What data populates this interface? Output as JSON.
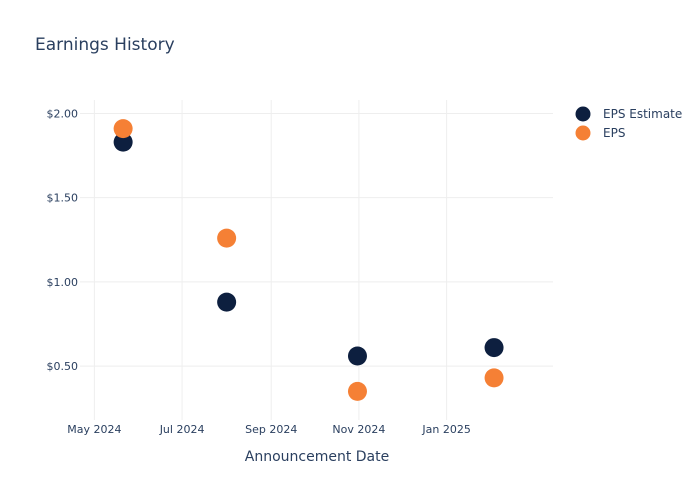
{
  "chart_data": {
    "type": "scatter",
    "title": "Earnings History",
    "xlabel": "Announcement Date",
    "ylabel": "",
    "x_ticks": [
      {
        "date": "2024-05-01",
        "label": "May 2024"
      },
      {
        "date": "2024-07-01",
        "label": "Jul 2024"
      },
      {
        "date": "2024-09-01",
        "label": "Sep 2024"
      },
      {
        "date": "2024-11-01",
        "label": "Nov 2024"
      },
      {
        "date": "2025-01-01",
        "label": "Jan 2025"
      }
    ],
    "y_ticks": [
      {
        "value": 0.5,
        "label": "$0.50"
      },
      {
        "value": 1.0,
        "label": "$1.00"
      },
      {
        "value": 1.5,
        "label": "$1.50"
      },
      {
        "value": 2.0,
        "label": "$2.00"
      }
    ],
    "xlim": [
      "2024-04-21",
      "2025-03-16"
    ],
    "ylim": [
      0.18,
      2.08
    ],
    "grid": true,
    "legend_position": "top-right",
    "series": [
      {
        "name": "EPS Estimate",
        "color": "#0d1f3f",
        "points": [
          {
            "x": "2024-05-21",
            "y": 1.83
          },
          {
            "x": "2024-08-01",
            "y": 0.88
          },
          {
            "x": "2024-10-31",
            "y": 0.56
          },
          {
            "x": "2025-02-03",
            "y": 0.61
          }
        ]
      },
      {
        "name": "EPS",
        "color": "#f58035",
        "points": [
          {
            "x": "2024-05-21",
            "y": 1.91
          },
          {
            "x": "2024-08-01",
            "y": 1.26
          },
          {
            "x": "2024-10-31",
            "y": 0.35
          },
          {
            "x": "2025-02-03",
            "y": 0.43
          }
        ]
      }
    ]
  }
}
